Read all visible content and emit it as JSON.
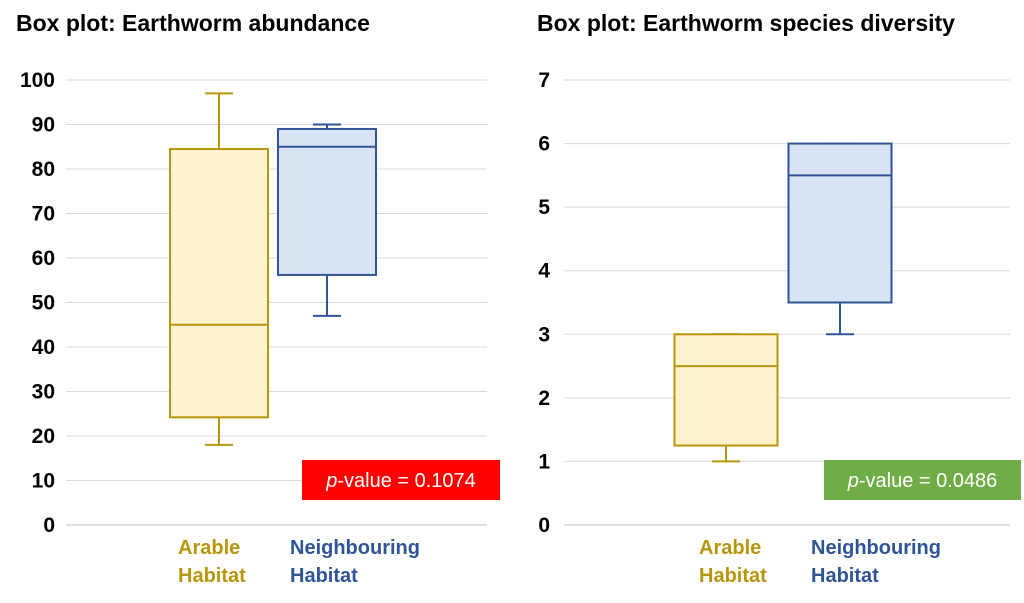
{
  "chart_data": [
    {
      "type": "box",
      "title": "Box plot: Earthworm abundance",
      "ylim": [
        0,
        100
      ],
      "yticks": [
        0,
        10,
        20,
        30,
        40,
        50,
        60,
        70,
        80,
        90,
        100
      ],
      "grid": true,
      "categories": [
        {
          "line1": "Arable",
          "line2": "Habitat",
          "color": "#B8960C",
          "fill": "#FFF2CC",
          "min": 18,
          "q1": 24.2,
          "median": 45,
          "q3": 84.5,
          "max": 97
        },
        {
          "line1": "Neighbouring",
          "line2": "Habitat",
          "color": "#2F5597",
          "fill": "#DAE3F3",
          "min": 47,
          "q1": 56.2,
          "median": 85,
          "q3": 89,
          "max": 90
        }
      ],
      "annotation": {
        "italic": "p",
        "text": "-value = 0.1074",
        "color": "#FF0000"
      }
    },
    {
      "type": "box",
      "title": "Box plot: Earthworm species diversity",
      "ylim": [
        0,
        7
      ],
      "yticks": [
        0,
        1,
        2,
        3,
        4,
        5,
        6,
        7
      ],
      "grid": true,
      "categories": [
        {
          "line1": "Arable",
          "line2": "Habitat",
          "color": "#B8960C",
          "fill": "#FFF2CC",
          "min": 1,
          "q1": 1.25,
          "median": 2.5,
          "q3": 3,
          "max": 3
        },
        {
          "line1": "Neighbouring",
          "line2": "Habitat",
          "color": "#2F5597",
          "fill": "#DAE3F3",
          "min": 3,
          "q1": 3.5,
          "median": 5.5,
          "q3": 6,
          "max": 6
        }
      ],
      "annotation": {
        "italic": "p",
        "text": "-value = 0.0486",
        "color": "#70AD47"
      }
    }
  ]
}
